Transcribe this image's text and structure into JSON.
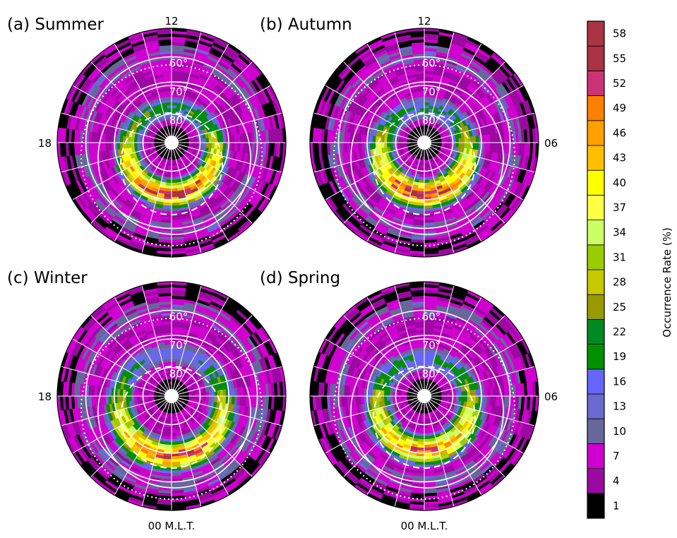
{
  "chart_data": {
    "type": "heatmap",
    "projection": "polar-mlt-mlat",
    "colorbar": {
      "label": "Occurrence Rate (%)",
      "ticks": [
        1,
        4,
        7,
        10,
        13,
        16,
        19,
        22,
        25,
        28,
        31,
        34,
        37,
        40,
        43,
        46,
        49,
        52,
        55,
        58
      ],
      "colors": [
        "#000000",
        "#9b0aa0",
        "#d000d0",
        "#67679a",
        "#6a6ad0",
        "#6666ff",
        "#009000",
        "#008a22",
        "#999900",
        "#c8c800",
        "#9acd00",
        "#ccff66",
        "#ffff44",
        "#ffff00",
        "#ffbf00",
        "#ff9f00",
        "#ff8000",
        "#cc3377",
        "#aa3344",
        "#aa3344"
      ]
    },
    "latitude_labels": [
      "60°",
      "70°",
      "80°"
    ],
    "mlt_labels": {
      "top": "12",
      "left": "18",
      "right": "06",
      "bottom": "00 M.L.T."
    },
    "panels": [
      {
        "title": "(a) Summer",
        "show_top": true,
        "show_left": true,
        "show_right": false,
        "show_bottom": false,
        "oval_peak_mlat": 72,
        "oval_peak_rate": 55,
        "oval_width_deg": 4.5,
        "dayside_rate": 22,
        "background_rate": 7,
        "polar_cap_rate": 1
      },
      {
        "title": "(b) Autumn",
        "show_top": true,
        "show_left": false,
        "show_right": true,
        "show_bottom": false,
        "oval_peak_mlat": 72,
        "oval_peak_rate": 55,
        "oval_width_deg": 5,
        "dayside_rate": 19,
        "background_rate": 7,
        "polar_cap_rate": 1
      },
      {
        "title": "(c) Winter",
        "show_top": false,
        "show_left": true,
        "show_right": false,
        "show_bottom": true,
        "oval_peak_mlat": 70,
        "oval_peak_rate": 52,
        "oval_width_deg": 5,
        "dayside_rate": 16,
        "background_rate": 7,
        "polar_cap_rate": 1
      },
      {
        "title": "(d) Spring",
        "show_top": false,
        "show_left": false,
        "show_right": true,
        "show_bottom": true,
        "oval_peak_mlat": 71,
        "oval_peak_rate": 49,
        "oval_width_deg": 5,
        "dayside_rate": 19,
        "background_rate": 7,
        "polar_cap_rate": 1
      }
    ]
  }
}
